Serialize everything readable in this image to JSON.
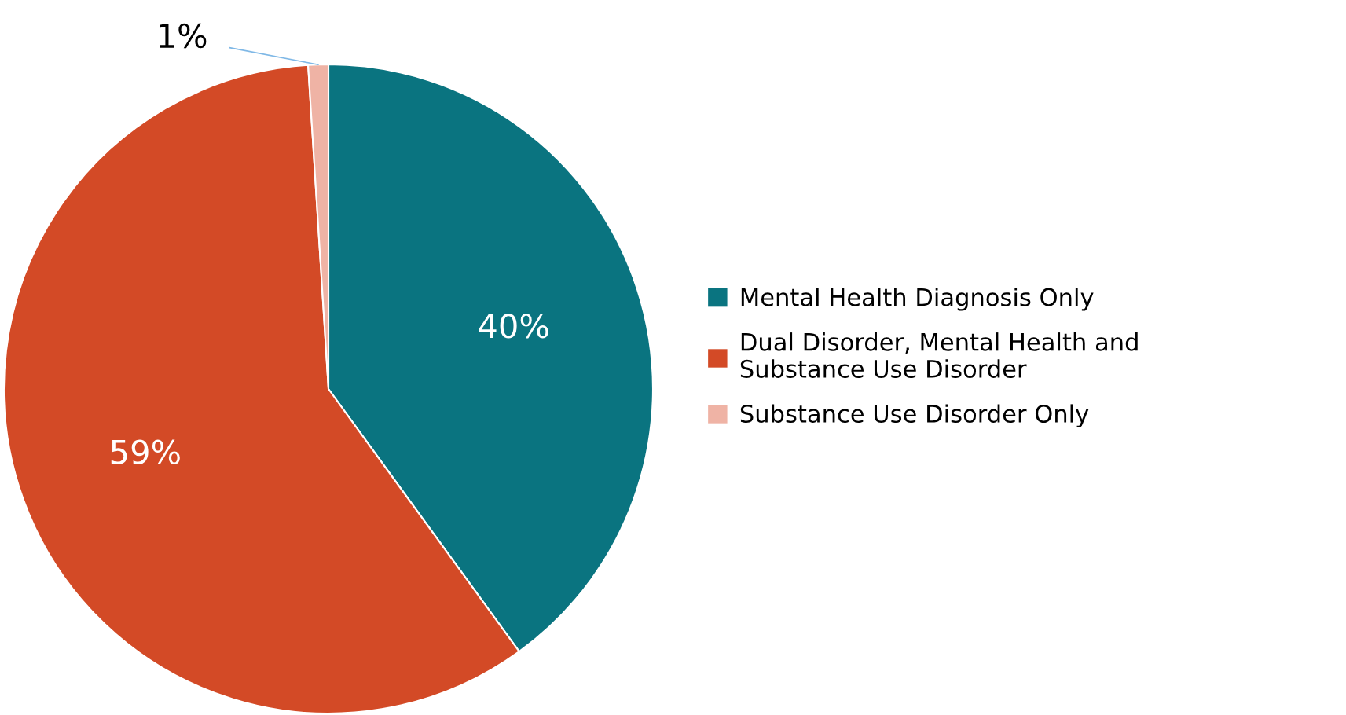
{
  "chart_data": {
    "type": "pie",
    "categories": [
      "Mental Health Diagnosis Only",
      "Dual Disorder, Mental Health and\nSubstance Use Disorder",
      "Substance Use Disorder Only"
    ],
    "values": [
      40,
      59,
      1
    ],
    "colors": [
      "#0a7480",
      "#d34a26",
      "#efb3a5"
    ],
    "value_labels": [
      "40%",
      "59%",
      "1%"
    ],
    "legend": "right"
  }
}
